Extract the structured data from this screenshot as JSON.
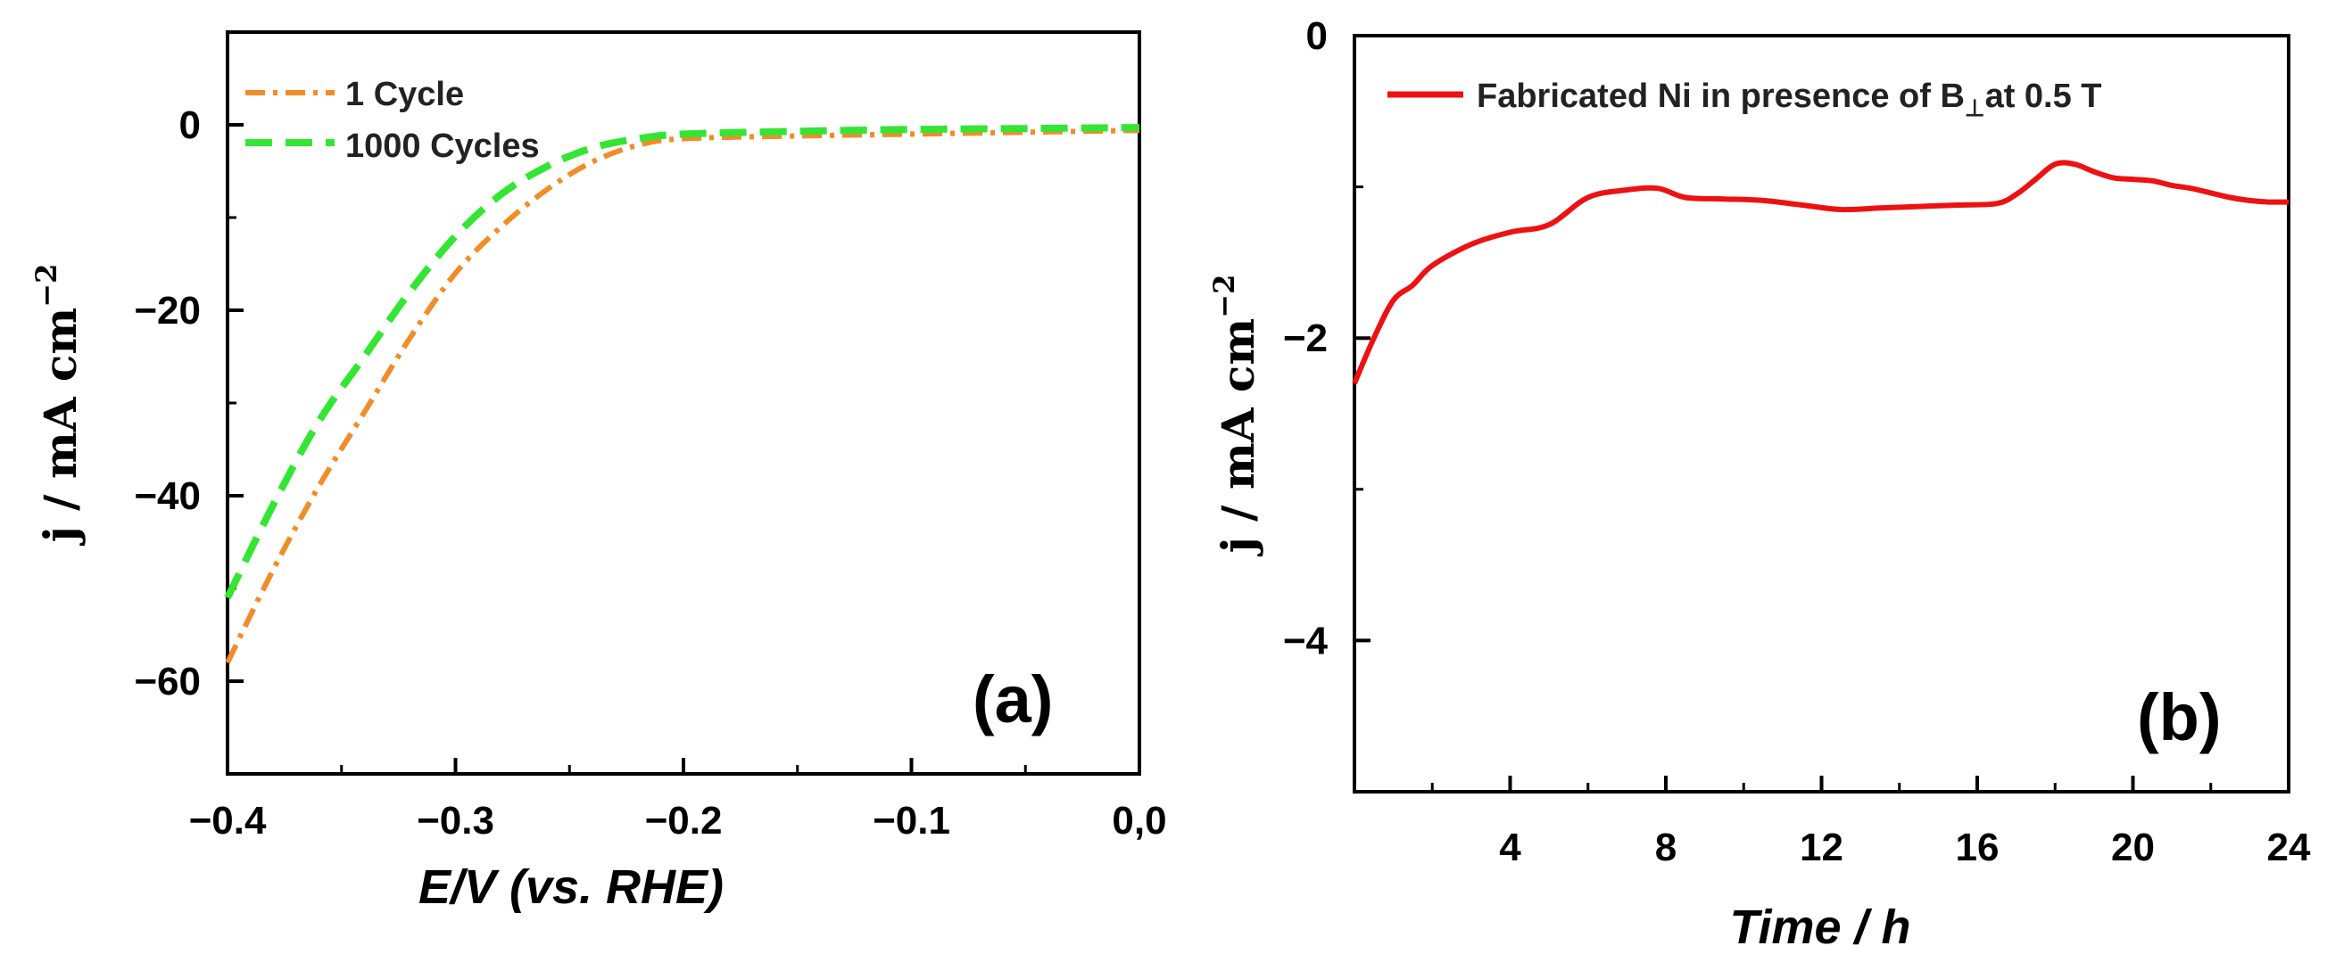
{
  "chart_data": [
    {
      "type": "line",
      "panel_label": "(a)",
      "xlabel": "E/V (vs. RHE)",
      "ylabel_main": "j / mA cm",
      "ylabel_sup": "−2",
      "xlim": [
        -0.4,
        0.0
      ],
      "ylim": [
        -70,
        10
      ],
      "xticks": [
        -0.4,
        -0.3,
        -0.2,
        -0.1,
        0.0
      ],
      "xtick_labels": [
        "−0.4",
        "−0.3",
        "−0.2",
        "−0.1",
        "0,0"
      ],
      "yticks": [
        0,
        -20,
        -40,
        -60
      ],
      "ytick_labels": [
        "0",
        "−20",
        "−40",
        "−60"
      ],
      "legend_position": "top-left",
      "series": [
        {
          "name": "1 Cycle",
          "color": "#f28c28",
          "dash": "dash-dot",
          "x": [
            -0.4,
            -0.38,
            -0.36,
            -0.34,
            -0.32,
            -0.3,
            -0.28,
            -0.26,
            -0.24,
            -0.22,
            -0.2,
            -0.15,
            -0.1,
            -0.05,
            0.0
          ],
          "y": [
            -58,
            -48,
            -39,
            -31,
            -23,
            -16,
            -11,
            -7,
            -4,
            -2.2,
            -1.5,
            -1.2,
            -1.0,
            -0.8,
            -0.6
          ]
        },
        {
          "name": "1000 Cycles",
          "color": "#33e633",
          "dash": "dashed",
          "x": [
            -0.4,
            -0.38,
            -0.36,
            -0.34,
            -0.32,
            -0.3,
            -0.28,
            -0.26,
            -0.24,
            -0.22,
            -0.2,
            -0.15,
            -0.1,
            -0.05,
            0.0
          ],
          "y": [
            -51,
            -41,
            -32,
            -25,
            -18,
            -12,
            -7.5,
            -4.5,
            -2.5,
            -1.5,
            -1.0,
            -0.7,
            -0.5,
            -0.4,
            -0.3
          ]
        }
      ]
    },
    {
      "type": "line",
      "panel_label": "(b)",
      "xlabel": "Time / h",
      "ylabel_main": "j / mA cm",
      "ylabel_sup": "−2",
      "xlim": [
        0,
        24
      ],
      "ylim": [
        -5,
        0
      ],
      "xticks": [
        4,
        8,
        12,
        16,
        20,
        24
      ],
      "xtick_labels": [
        "4",
        "8",
        "12",
        "16",
        "20",
        "24"
      ],
      "yticks": [
        0,
        -2,
        -4
      ],
      "ytick_labels": [
        "0",
        "−2",
        "−4"
      ],
      "legend_position": "top-left",
      "series": [
        {
          "name": "Fabricated Ni in presence of B",
          "name_sub": "⊥",
          "name_suffix": "at 0.5 T",
          "color": "#ee1111",
          "dash": "solid",
          "x": [
            0,
            0.5,
            1.0,
            1.5,
            2.0,
            3.0,
            4.0,
            5.0,
            6.0,
            7.0,
            7.8,
            8.5,
            9.5,
            10.5,
            11.5,
            12.5,
            13.5,
            14.5,
            15.5,
            16.5,
            17.0,
            17.5,
            18.0,
            18.5,
            19.0,
            19.5,
            20.0,
            20.5,
            21.0,
            21.5,
            22.0,
            22.5,
            23.0,
            23.5,
            24.0
          ],
          "y": [
            -2.3,
            -2.0,
            -1.75,
            -1.65,
            -1.52,
            -1.38,
            -1.3,
            -1.25,
            -1.07,
            -1.02,
            -1.01,
            -1.07,
            -1.08,
            -1.09,
            -1.12,
            -1.15,
            -1.14,
            -1.13,
            -1.12,
            -1.11,
            -1.05,
            -0.95,
            -0.85,
            -0.85,
            -0.9,
            -0.94,
            -0.95,
            -0.96,
            -0.99,
            -1.01,
            -1.04,
            -1.07,
            -1.09,
            -1.1,
            -1.1
          ]
        }
      ]
    }
  ]
}
